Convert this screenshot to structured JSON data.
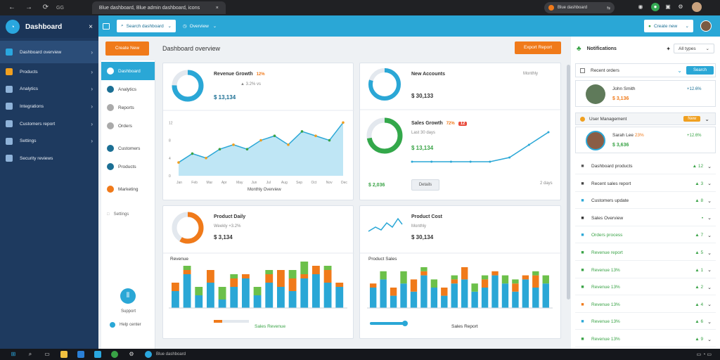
{
  "browser": {
    "tab_title": "Blue dashboard, Blue admin dashboard, icons",
    "url": "Blue dashboard",
    "nav_label": "GG"
  },
  "sidebar": {
    "title": "Dashboard",
    "items": [
      {
        "label": "Dashboard overview",
        "icon": "dashboard-icon",
        "color": "#2aa7df"
      },
      {
        "label": "Products",
        "icon": "box-icon",
        "color": "#f0a020"
      },
      {
        "label": "Analytics",
        "icon": "analytics-icon",
        "color": "#8fb3d9"
      },
      {
        "label": "Integrations",
        "icon": "flow-icon",
        "color": "#8fb3d9"
      },
      {
        "label": "Customers report",
        "icon": "document-icon",
        "color": "#8fb3d9"
      },
      {
        "label": "Settings",
        "icon": "gear-icon",
        "color": "#8fb3d9"
      },
      {
        "label": "Security reviews",
        "icon": "user-icon",
        "color": "#8fb3d9"
      }
    ]
  },
  "topbar": {
    "search_placeholder": "Search dashboard",
    "filter_label": "Overview",
    "button_label": "Create new",
    "colors": {
      "accent": "#2aa7d6"
    }
  },
  "main": {
    "new_button": "Create New",
    "page_title": "Dashboard overview",
    "export_button": "Export Report",
    "leftcol": {
      "items": [
        "Dashboard",
        "Analytics",
        "Reports",
        "Orders",
        "Customers",
        "Products",
        "Marketing"
      ],
      "footer_link": "Settings",
      "footer_label": "Support",
      "footer_bottom": "Help center"
    },
    "cards": [
      {
        "title": "Revenue Growth",
        "pct": "12%",
        "sub": "▲ 3.2% vs",
        "value": "$ 13,134",
        "ring": "#2aa7d6"
      },
      {
        "title": "New Accounts",
        "sub": "Monthly",
        "value": "$ 30,133",
        "ring": "#2aa7d6"
      },
      {
        "title": "Sales Growth",
        "pct": "72%",
        "sub": "Last 30 days",
        "value": "$ 13,134",
        "extra": "$ 2,036",
        "ring": "#33a84a",
        "badge": "12"
      },
      {
        "title": "Product Daily",
        "pct": "",
        "sub": "Weekly +3.2%",
        "value": "$ 3,134",
        "ring": "#f07a1a"
      },
      {
        "title": "Product Cost",
        "sub": "Monthly",
        "value": "$ 30,134"
      }
    ],
    "line_chart_1": {
      "xlabel": "Monthly Overview",
      "ticks": [
        "Jan",
        "Feb",
        "Mar",
        "Apr",
        "May",
        "Jun",
        "Jul",
        "Aug",
        "Sep",
        "Oct",
        "Nov",
        "Dec"
      ]
    },
    "line_chart_2": {
      "left_value": "$ 2,036",
      "button": "Details",
      "right": "2 days"
    },
    "bars_1": {
      "title": "Revenue",
      "legend": "Sales Revenue"
    },
    "bars_2": {
      "title": "Product Sales",
      "label": "Sales Report"
    }
  },
  "right": {
    "title": "Notifications",
    "filter": "All types",
    "search_label": "Recent orders",
    "search_button": "Search",
    "profile_1": {
      "name": "John Smith",
      "value": "$ 3,136",
      "stat": "+12.6%"
    },
    "section": {
      "label": "User Management",
      "badge": "New"
    },
    "profile_2": {
      "name": "Sarah Lee",
      "pct": "23%",
      "value": "$ 3,636",
      "stat": "+12.6%"
    },
    "rows": [
      {
        "label": "Dashboard products",
        "val": "▲ 12"
      },
      {
        "label": "Recent sales report",
        "val": "▲ 3"
      },
      {
        "label": "Customers update",
        "val": "▲ 8"
      },
      {
        "label": "Sales Overview",
        "val": "•"
      },
      {
        "label": "Orders process",
        "val": "▲ 7"
      },
      {
        "label": "Revenue report",
        "val": "▲ 5"
      },
      {
        "label": "Revenue 13%",
        "val": "▲ 1"
      },
      {
        "label": "Revenue 13%",
        "val": "▲ 2"
      },
      {
        "label": "Revenue 13%",
        "val": "▲ 4"
      },
      {
        "label": "Revenue 13%",
        "val": "▲ 6"
      },
      {
        "label": "Revenue 13%",
        "val": "▲ 9"
      }
    ]
  },
  "chart_data": [
    {
      "type": "line",
      "series": [
        {
          "values": [
            3,
            5,
            4,
            6,
            7,
            6,
            8,
            9,
            7,
            10,
            9,
            8,
            12
          ]
        }
      ]
    },
    {
      "type": "line",
      "series": [
        {
          "values": [
            2,
            2,
            2,
            2,
            2,
            3,
            6,
            9
          ]
        }
      ]
    },
    {
      "type": "bar",
      "series": [
        {
          "values": [
            4,
            8,
            3,
            6,
            2,
            5,
            7,
            3,
            6,
            5,
            4,
            7,
            8,
            6,
            5
          ]
        },
        {
          "values": [
            2,
            1,
            0,
            3,
            0,
            2,
            1,
            0,
            2,
            4,
            3,
            1,
            2,
            3,
            1
          ]
        },
        {
          "values": [
            0,
            1,
            2,
            0,
            3,
            1,
            0,
            2,
            1,
            0,
            2,
            3,
            0,
            1,
            0
          ]
        }
      ]
    },
    {
      "type": "bar",
      "series": [
        {
          "values": [
            5,
            7,
            3,
            6,
            4,
            8,
            5,
            3,
            6,
            7,
            4,
            5,
            8,
            6,
            4,
            7,
            5,
            6
          ]
        },
        {
          "values": [
            1,
            0,
            2,
            0,
            3,
            1,
            0,
            2,
            1,
            3,
            0,
            2,
            1,
            0,
            2,
            1,
            3,
            0
          ]
        },
        {
          "values": [
            0,
            2,
            0,
            3,
            0,
            1,
            2,
            0,
            1,
            0,
            2,
            1,
            0,
            2,
            1,
            0,
            1,
            2
          ]
        }
      ]
    }
  ]
}
